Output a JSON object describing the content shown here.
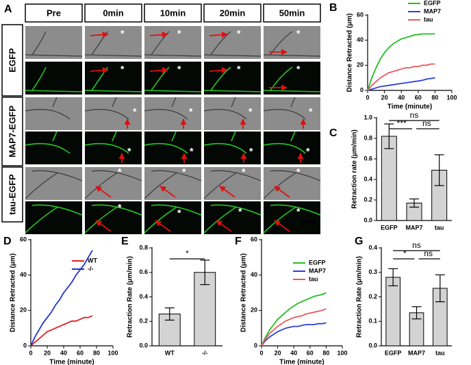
{
  "panel_a": {
    "label": "A",
    "columns": [
      "Pre",
      "0min",
      "10min",
      "20min",
      "50min"
    ],
    "rows": [
      "EGFP",
      "MAP7-EGFP",
      "tau-EGFP"
    ],
    "marker": "*"
  },
  "chart_data": [
    {
      "type": "line",
      "panel": "B",
      "xlabel": "Time (minute)",
      "ylabel": "Distance Retracted (μm)",
      "x": [
        0,
        5,
        10,
        15,
        20,
        25,
        30,
        35,
        40,
        45,
        50,
        55,
        60,
        65,
        70,
        75,
        80
      ],
      "series": [
        {
          "name": "EGFP",
          "color": "#1fc01f",
          "values": [
            0,
            10,
            18,
            25,
            30,
            34,
            37,
            39,
            41,
            42,
            43,
            44,
            44.5,
            45,
            45,
            45,
            45
          ]
        },
        {
          "name": "MAP7",
          "color": "#2b3fd6",
          "values": [
            0,
            1,
            2,
            3,
            3.5,
            4,
            4.5,
            5,
            5.5,
            6,
            6.5,
            7,
            7.5,
            8,
            9,
            9.5,
            10
          ]
        },
        {
          "name": "tau",
          "color": "#e8585c",
          "values": [
            0,
            4,
            7,
            10,
            12,
            14,
            15,
            16,
            17,
            18,
            18,
            19,
            19,
            20,
            20,
            21,
            21
          ]
        }
      ],
      "xlim": [
        0,
        100
      ],
      "xticks": [
        0,
        20,
        40,
        60,
        80,
        100
      ],
      "ylim": [
        0,
        60
      ],
      "yticks": [
        0,
        20,
        40,
        60
      ],
      "legend": "upper right"
    },
    {
      "type": "bar",
      "panel": "C",
      "ylabel": "Retraction rate (μm/min)",
      "categories": [
        "EGFP",
        "MAP7",
        "tau"
      ],
      "values": [
        0.82,
        0.17,
        0.49
      ],
      "errors": [
        0.12,
        0.04,
        0.15
      ],
      "color": "#d3d3d3",
      "ylim": [
        0,
        1.0
      ],
      "yticks": [
        {
          "value": 0,
          "label": "0.0"
        },
        {
          "value": 0.2,
          "label": "0.2"
        },
        {
          "value": 0.4,
          "label": "0.4"
        },
        {
          "value": 0.6,
          "label": "0.6"
        },
        {
          "value": 0.8,
          "label": "0.8"
        },
        {
          "value": 1.0,
          "label": "1.0"
        }
      ],
      "annotations": [
        {
          "text": "ns",
          "between": [
            "EGFP",
            "tau"
          ]
        },
        {
          "text": "***",
          "between": [
            "EGFP",
            "MAP7"
          ]
        },
        {
          "text": "ns",
          "between": [
            "MAP7",
            "tau"
          ]
        }
      ]
    },
    {
      "type": "line",
      "panel": "D",
      "xlabel": "Time (minute)",
      "ylabel": "Distance Retracted (μm)",
      "x": [
        0,
        5,
        10,
        15,
        20,
        25,
        30,
        35,
        40,
        45,
        50,
        55,
        60,
        65,
        70,
        75
      ],
      "series": [
        {
          "name": "WT",
          "color": "#e02020",
          "values": [
            0,
            2,
            4,
            6,
            8,
            9,
            10,
            11,
            12,
            13,
            14,
            14,
            15,
            16,
            16,
            17
          ]
        },
        {
          "name": "-/-",
          "color": "#2030d0",
          "values": [
            0,
            5,
            9,
            13,
            16,
            19,
            23,
            26,
            30,
            33,
            36,
            40,
            43,
            46,
            50,
            54
          ]
        }
      ],
      "xlim": [
        0,
        100
      ],
      "xticks": [
        0,
        20,
        40,
        60,
        80,
        100
      ],
      "ylim": [
        0,
        60
      ],
      "yticks": [
        0,
        20,
        40,
        60
      ],
      "legend": "upper right"
    },
    {
      "type": "bar",
      "panel": "E",
      "ylabel": "Retraction Rate (μm/min)",
      "categories": [
        "WT",
        "-/-"
      ],
      "values": [
        0.26,
        0.6
      ],
      "errors": [
        0.05,
        0.1
      ],
      "color": "#d3d3d3",
      "ylim": [
        0,
        0.8
      ],
      "yticks": [
        {
          "value": 0,
          "label": "0.0"
        },
        {
          "value": 0.2,
          "label": "0.2"
        },
        {
          "value": 0.4,
          "label": "0.4"
        },
        {
          "value": 0.6,
          "label": "0.6"
        },
        {
          "value": 0.8,
          "label": "0.8"
        }
      ],
      "annotations": [
        {
          "text": "*",
          "between": [
            "WT",
            "-/-"
          ]
        }
      ]
    },
    {
      "type": "line",
      "panel": "F",
      "xlabel": "Time (minute)",
      "ylabel": "Distance Retracted (μm)",
      "x": [
        0,
        5,
        10,
        15,
        20,
        25,
        30,
        35,
        40,
        45,
        50,
        55,
        60,
        65,
        70,
        75,
        80
      ],
      "series": [
        {
          "name": "EGFP",
          "color": "#1fc01f",
          "values": [
            0,
            5,
            9,
            12,
            15,
            17,
            19,
            21,
            22.5,
            24,
            25,
            26,
            27,
            28,
            28.5,
            29,
            30
          ]
        },
        {
          "name": "MAP7",
          "color": "#2b3fd6",
          "values": [
            0,
            3,
            5,
            6.5,
            8,
            9,
            10,
            10.5,
            11,
            11,
            11.5,
            12,
            12,
            12,
            12.5,
            12.5,
            13
          ]
        },
        {
          "name": "tau",
          "color": "#e8585c",
          "values": [
            0,
            4,
            7,
            9,
            11,
            12.5,
            14,
            15,
            16,
            16.5,
            17,
            18,
            18.5,
            19,
            19.5,
            20,
            21
          ]
        }
      ],
      "xlim": [
        0,
        100
      ],
      "xticks": [
        0,
        20,
        40,
        60,
        80,
        100
      ],
      "ylim": [
        0,
        60
      ],
      "yticks": [
        0,
        20,
        40,
        60
      ],
      "legend": "upper right"
    },
    {
      "type": "bar",
      "panel": "G",
      "ylabel": "Retraction Rate (μm/min)",
      "categories": [
        "EGFP",
        "MAP7",
        "tau"
      ],
      "values": [
        0.28,
        0.135,
        0.235
      ],
      "errors": [
        0.035,
        0.025,
        0.055
      ],
      "color": "#d3d3d3",
      "ylim": [
        0,
        0.4
      ],
      "yticks": [
        {
          "value": 0,
          "label": "0.0"
        },
        {
          "value": 0.1,
          "label": "0.1"
        },
        {
          "value": 0.2,
          "label": "0.2"
        },
        {
          "value": 0.3,
          "label": "0.3"
        },
        {
          "value": 0.4,
          "label": "0.4"
        }
      ],
      "annotations": [
        {
          "text": "ns",
          "between": [
            "EGFP",
            "tau"
          ]
        },
        {
          "text": "*",
          "between": [
            "EGFP",
            "MAP7"
          ]
        },
        {
          "text": "ns",
          "between": [
            "MAP7",
            "tau"
          ]
        }
      ]
    }
  ]
}
